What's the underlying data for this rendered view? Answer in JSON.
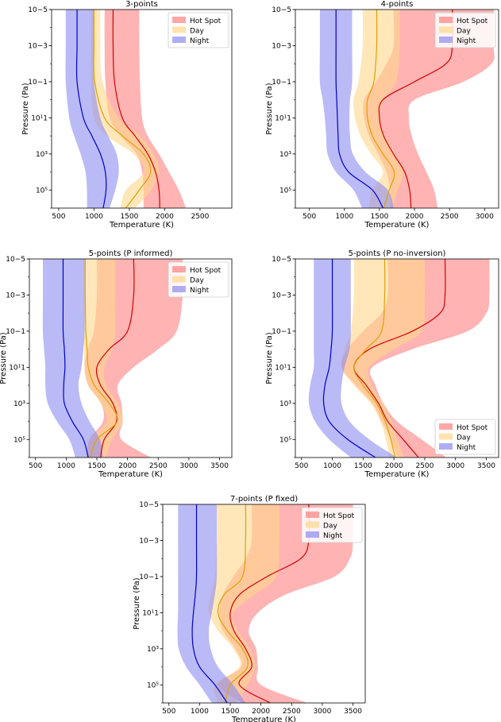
{
  "figure": {
    "legend_labels": [
      "Hot Spot",
      "Day",
      "Night"
    ],
    "xlabel": "Temperature (K)",
    "ylabel": "Pressure (Pa)",
    "colors": {
      "hot_spot_band": "#ff8080",
      "hot_spot_line": "#d40000",
      "day_band": "#ffd78c",
      "day_line": "#e0a000",
      "night_band": "#8c8cf0",
      "night_line": "#0000cc"
    }
  },
  "chart_data": [
    {
      "type": "area",
      "title": "3-points",
      "xlabel": "Temperature (K)",
      "ylabel": "Pressure (Pa)",
      "ylim": [
        1000000,
        1e-05
      ],
      "y_scale": "log",
      "xlim": [
        400,
        2950
      ],
      "xticks": [
        500,
        1000,
        1500,
        2000,
        2500
      ],
      "yticks": [
        1e-05,
        0.001,
        0.1,
        10,
        1000,
        100000
      ],
      "ytick_labels": [
        "10−5",
        "10−3",
        "10−1",
        "10¹1",
        "10³",
        "10⁵"
      ],
      "legend_position": "top-right",
      "series": [
        {
          "name": "Hot Spot",
          "pressure": [
            1e-05,
            0.001,
            0.1,
            10,
            100,
            1000,
            10000,
            100000,
            1000000
          ],
          "median": [
            1270,
            1270,
            1290,
            1400,
            1580,
            1760,
            1870,
            1920,
            1930
          ],
          "lower": [
            1150,
            1150,
            1160,
            1220,
            1380,
            1600,
            1680,
            1700,
            1700
          ],
          "upper": [
            1640,
            1640,
            1650,
            1680,
            1760,
            1920,
            2060,
            2200,
            2300
          ]
        },
        {
          "name": "Day",
          "pressure": [
            1e-05,
            0.001,
            0.1,
            10,
            100,
            1000,
            10000,
            100000,
            1000000
          ],
          "median": [
            1000,
            1000,
            1010,
            1150,
            1400,
            1700,
            1800,
            1640,
            1450
          ],
          "lower": [
            960,
            960,
            960,
            1000,
            1180,
            1560,
            1700,
            1450,
            1370
          ],
          "upper": [
            1090,
            1090,
            1120,
            1350,
            1650,
            1840,
            1920,
            1810,
            1580
          ]
        },
        {
          "name": "Night",
          "pressure": [
            1e-05,
            0.001,
            0.1,
            10,
            100,
            1000,
            10000,
            100000,
            1000000
          ],
          "median": [
            760,
            760,
            760,
            850,
            970,
            1090,
            1160,
            1170,
            1130
          ],
          "lower": [
            600,
            600,
            600,
            650,
            720,
            810,
            880,
            900,
            900
          ],
          "upper": [
            1000,
            1000,
            1000,
            1090,
            1200,
            1320,
            1350,
            1300,
            1220
          ]
        }
      ]
    },
    {
      "type": "area",
      "title": "4-points",
      "xlabel": "Temperature (K)",
      "ylabel": "Pressure (Pa)",
      "ylim": [
        1000000,
        1e-05
      ],
      "y_scale": "log",
      "xlim": [
        300,
        3200
      ],
      "xticks": [
        500,
        1000,
        1500,
        2000,
        2500,
        3000
      ],
      "yticks": [
        1e-05,
        0.001,
        0.1,
        10,
        1000,
        100000
      ],
      "ytick_labels": [
        "10−5",
        "10−3",
        "10−1",
        "10¹1",
        "10³",
        "10⁵"
      ],
      "legend_position": "top-right",
      "series": [
        {
          "name": "Hot Spot",
          "pressure": [
            1e-05,
            0.001,
            0.01,
            0.1,
            1,
            10,
            100,
            1000,
            10000,
            100000,
            1000000
          ],
          "median": [
            2540,
            2540,
            2450,
            2000,
            1550,
            1500,
            1560,
            1700,
            1860,
            1930,
            1950
          ],
          "lower": [
            1700,
            1700,
            1600,
            1450,
            1280,
            1280,
            1350,
            1480,
            1600,
            1650,
            1650
          ],
          "upper": [
            3130,
            3130,
            3100,
            2700,
            2000,
            1920,
            1960,
            2050,
            2170,
            2280,
            2330
          ]
        },
        {
          "name": "Day",
          "pressure": [
            1e-05,
            0.001,
            0.1,
            1,
            10,
            100,
            1000,
            10000,
            100000,
            1000000
          ],
          "median": [
            1460,
            1460,
            1420,
            1330,
            1330,
            1400,
            1550,
            1710,
            1640,
            1560
          ],
          "lower": [
            1260,
            1260,
            1200,
            1130,
            1150,
            1230,
            1380,
            1550,
            1400,
            1350
          ],
          "upper": [
            1790,
            1790,
            1740,
            1560,
            1500,
            1580,
            1720,
            1840,
            1760,
            1680
          ]
        },
        {
          "name": "Night",
          "pressure": [
            1e-05,
            0.001,
            0.1,
            1,
            10,
            100,
            1000,
            10000,
            100000,
            1000000
          ],
          "median": [
            880,
            880,
            880,
            890,
            900,
            910,
            930,
            1060,
            1400,
            1550
          ],
          "lower": [
            650,
            650,
            650,
            690,
            720,
            740,
            760,
            880,
            1130,
            1250
          ],
          "upper": [
            1110,
            1110,
            1110,
            1080,
            1070,
            1080,
            1120,
            1300,
            1620,
            1700
          ]
        }
      ]
    },
    {
      "type": "area",
      "title": "5-points (P informed)",
      "xlabel": "Temperature (K)",
      "ylabel": "Pressure (Pa)",
      "ylim": [
        1000000,
        1e-05
      ],
      "y_scale": "log",
      "xlim": [
        400,
        3700
      ],
      "xticks": [
        500,
        1000,
        1500,
        2000,
        2500,
        3000,
        3500
      ],
      "yticks": [
        1e-05,
        0.001,
        0.1,
        10,
        1000,
        100000
      ],
      "ytick_labels": [
        "10−5",
        "10−3",
        "10−1",
        "10¹1",
        "10³",
        "10⁵"
      ],
      "legend_position": "top-right",
      "series": [
        {
          "name": "Hot Spot",
          "pressure": [
            1e-05,
            0.001,
            0.1,
            1,
            10,
            100,
            1000,
            10000,
            100000,
            1000000
          ],
          "median": [
            2100,
            2100,
            2000,
            1700,
            1500,
            1560,
            1760,
            1820,
            1620,
            1560
          ],
          "lower": [
            1500,
            1500,
            1450,
            1350,
            1300,
            1360,
            1570,
            1600,
            1380,
            1340
          ],
          "upper": [
            2900,
            2900,
            2800,
            2500,
            2100,
            1840,
            1900,
            1920,
            1900,
            2380
          ]
        },
        {
          "name": "Day",
          "pressure": [
            1e-05,
            0.001,
            0.1,
            1,
            10,
            100,
            1000,
            10000,
            100000,
            1000000
          ],
          "median": [
            1310,
            1310,
            1320,
            1340,
            1360,
            1460,
            1700,
            1830,
            1500,
            1400
          ],
          "lower": [
            1280,
            1280,
            1280,
            1290,
            1300,
            1360,
            1560,
            1660,
            1380,
            1320
          ],
          "upper": [
            1800,
            1800,
            1800,
            1750,
            1620,
            1650,
            1840,
            1920,
            1750,
            1640
          ]
        },
        {
          "name": "Night",
          "pressure": [
            1e-05,
            0.001,
            0.1,
            1,
            10,
            100,
            1000,
            10000,
            100000,
            1000000
          ],
          "median": [
            950,
            950,
            950,
            970,
            980,
            960,
            970,
            1100,
            1280,
            1360
          ],
          "lower": [
            620,
            620,
            620,
            640,
            660,
            660,
            700,
            850,
            1050,
            1150
          ],
          "upper": [
            1300,
            1300,
            1300,
            1280,
            1250,
            1200,
            1250,
            1380,
            1550,
            1600
          ]
        }
      ]
    },
    {
      "type": "area",
      "title": "5-points (P no-inversion)",
      "xlabel": "Temperature (K)",
      "ylabel": "Pressure (Pa)",
      "ylim": [
        1000000,
        1e-05
      ],
      "y_scale": "log",
      "xlim": [
        400,
        3700
      ],
      "xticks": [
        500,
        1000,
        1500,
        2000,
        2500,
        3000,
        3500
      ],
      "yticks": [
        1e-05,
        0.001,
        0.1,
        10,
        1000,
        100000
      ],
      "ytick_labels": [
        "10−5",
        "10−3",
        "10−1",
        "10¹1",
        "10³",
        "10⁵"
      ],
      "legend_position": "bottom-right",
      "series": [
        {
          "name": "Hot Spot",
          "pressure": [
            1e-05,
            0.001,
            0.01,
            0.1,
            1,
            10,
            100,
            1000,
            10000,
            100000,
            1000000
          ],
          "median": [
            2830,
            2830,
            2750,
            2300,
            1600,
            1350,
            1550,
            1750,
            1900,
            2150,
            2400
          ],
          "lower": [
            1900,
            1900,
            1800,
            1500,
            1250,
            1150,
            1380,
            1650,
            1800,
            1950,
            2050
          ],
          "upper": [
            3550,
            3550,
            3500,
            3200,
            2300,
            1650,
            1700,
            1830,
            2050,
            2450,
            2850
          ]
        },
        {
          "name": "Day",
          "pressure": [
            1e-05,
            0.001,
            0.1,
            1,
            10,
            100,
            1000,
            10000,
            100000,
            1000000
          ],
          "median": [
            1850,
            1850,
            1800,
            1550,
            1350,
            1500,
            1720,
            1860,
            1950,
            2020
          ],
          "lower": [
            1350,
            1350,
            1300,
            1200,
            1150,
            1350,
            1620,
            1780,
            1870,
            1920
          ],
          "upper": [
            2500,
            2500,
            2450,
            2000,
            1600,
            1640,
            1820,
            1960,
            2060,
            2160
          ]
        },
        {
          "name": "Night",
          "pressure": [
            1e-05,
            0.001,
            0.1,
            1,
            10,
            100,
            1000,
            10000,
            100000,
            1000000
          ],
          "median": [
            1000,
            1000,
            1000,
            980,
            950,
            880,
            860,
            950,
            1250,
            1700
          ],
          "lower": [
            700,
            700,
            700,
            700,
            700,
            640,
            620,
            720,
            950,
            1300
          ],
          "upper": [
            1300,
            1300,
            1300,
            1280,
            1200,
            1150,
            1150,
            1280,
            1600,
            2050
          ]
        }
      ]
    },
    {
      "type": "area",
      "title": "7-points (P fixed)",
      "xlabel": "Temperature (K)",
      "ylabel": "Pressure (Pa)",
      "ylim": [
        1000000,
        1e-05
      ],
      "y_scale": "log",
      "xlim": [
        400,
        3700
      ],
      "xticks": [
        500,
        1000,
        1500,
        2000,
        2500,
        3000,
        3500
      ],
      "yticks": [
        1e-05,
        0.001,
        0.1,
        10,
        1000,
        100000
      ],
      "ytick_labels": [
        "10−5",
        "10−3",
        "10−1",
        "10¹1",
        "10³",
        "10⁵"
      ],
      "legend_position": "top-right",
      "series": [
        {
          "name": "Hot Spot",
          "pressure": [
            1e-05,
            0.001,
            0.01,
            0.1,
            1,
            10,
            100,
            1000,
            10000,
            100000,
            1000000
          ],
          "median": [
            2780,
            2780,
            2650,
            2100,
            1650,
            1500,
            1560,
            1750,
            1850,
            1650,
            2150
          ],
          "lower": [
            1850,
            1850,
            1750,
            1550,
            1380,
            1320,
            1380,
            1580,
            1680,
            1300,
            1700
          ],
          "upper": [
            3500,
            3500,
            3450,
            3200,
            2400,
            1950,
            1800,
            1920,
            1950,
            2000,
            2750
          ]
        },
        {
          "name": "Day",
          "pressure": [
            1e-05,
            0.001,
            0.1,
            1,
            10,
            100,
            1000,
            10000,
            100000,
            1000000
          ],
          "median": [
            1750,
            1750,
            1700,
            1400,
            1300,
            1450,
            1700,
            1780,
            1500,
            1420
          ],
          "lower": [
            1280,
            1280,
            1250,
            1180,
            1150,
            1300,
            1550,
            1650,
            1250,
            1300
          ],
          "upper": [
            2300,
            2300,
            2250,
            1900,
            1550,
            1620,
            1820,
            1900,
            1780,
            1600
          ]
        },
        {
          "name": "Night",
          "pressure": [
            1e-05,
            0.001,
            0.1,
            1,
            10,
            100,
            1000,
            10000,
            100000,
            1000000
          ],
          "median": [
            950,
            950,
            950,
            930,
            900,
            880,
            900,
            1000,
            1250,
            1450
          ],
          "lower": [
            650,
            650,
            650,
            650,
            650,
            640,
            660,
            780,
            1000,
            1200
          ],
          "upper": [
            1280,
            1280,
            1280,
            1250,
            1200,
            1150,
            1180,
            1300,
            1550,
            1750
          ]
        }
      ]
    }
  ]
}
